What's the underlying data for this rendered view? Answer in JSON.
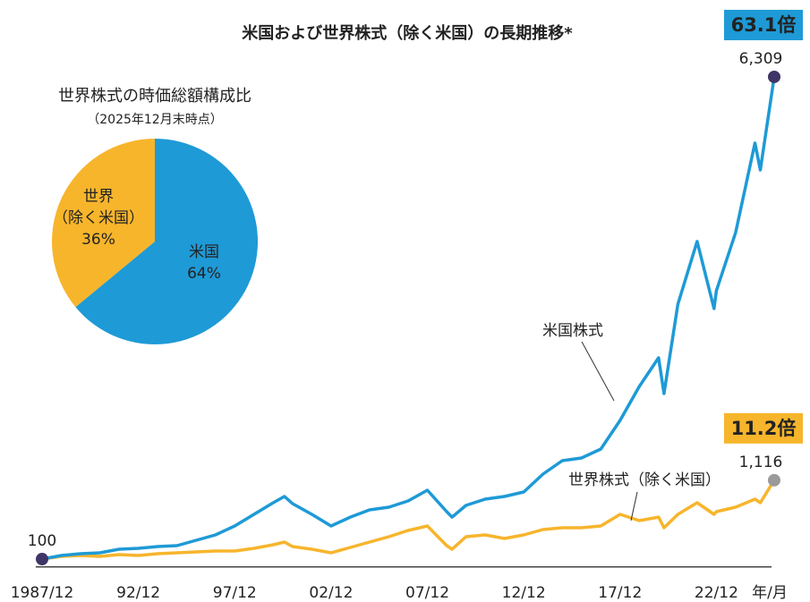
{
  "chart_data": [
    {
      "type": "line",
      "title": "米国および世界株式（除く米国）の長期推移*",
      "xlabel": "年/月",
      "x": [
        1987.92,
        1988.92,
        1989.92,
        1990.92,
        1991.92,
        1992.92,
        1993.92,
        1994.92,
        1995.92,
        1996.92,
        1997.92,
        1998.92,
        1999.92,
        2000.5,
        2000.92,
        2001.92,
        2002.92,
        2003.92,
        2004.92,
        2005.92,
        2006.92,
        2007.92,
        2008.92,
        2009.2,
        2009.92,
        2010.92,
        2011.92,
        2012.92,
        2013.92,
        2014.92,
        2015.92,
        2016.92,
        2017.92,
        2018.92,
        2019.92,
        2020.2,
        2020.92,
        2021.92,
        2022.8,
        2022.92,
        2023.92,
        2024.92,
        2025.2,
        2025.92
      ],
      "xlim": [
        1987.92,
        2025.92
      ],
      "xticks": [
        {
          "value": 1987.92,
          "label": "1987/12"
        },
        {
          "value": 1992.92,
          "label": "92/12"
        },
        {
          "value": 1997.92,
          "label": "97/12"
        },
        {
          "value": 2002.92,
          "label": "02/12"
        },
        {
          "value": 2007.92,
          "label": "07/12"
        },
        {
          "value": 2012.92,
          "label": "12/12"
        },
        {
          "value": 2017.92,
          "label": "17/12"
        },
        {
          "value": 2022.92,
          "label": "22/12"
        }
      ],
      "ylim": [
        0,
        6500
      ],
      "series": [
        {
          "name": "米国株式",
          "color": "#1e9ad6",
          "marker_color": "#3f3566",
          "multiple": "63.1倍",
          "values": [
            100,
            146,
            169,
            181,
            227,
            238,
            261,
            273,
            342,
            411,
            526,
            676,
            826,
            906,
            814,
            676,
            526,
            641,
            734,
            768,
            849,
            987,
            711,
            641,
            791,
            872,
            906,
            964,
            1194,
            1367,
            1402,
            1517,
            1886,
            2323,
            2692,
            2231,
            3383,
            4190,
            3326,
            3556,
            4305,
            5457,
            5111,
            6309
          ],
          "value_labels": [
            "100",
            null,
            null,
            null,
            null,
            null,
            null,
            null,
            null,
            null,
            null,
            null,
            null,
            null,
            null,
            null,
            null,
            null,
            null,
            null,
            null,
            null,
            null,
            null,
            null,
            null,
            null,
            null,
            null,
            null,
            null,
            null,
            null,
            null,
            null,
            null,
            null,
            null,
            null,
            null,
            null,
            null,
            null,
            "6,309"
          ]
        },
        {
          "name": "世界株式（除く米国）",
          "color": "#f7b52c",
          "marker_color": "#9a9a9a",
          "multiple": "11.2倍",
          "values": [
            100,
            135,
            146,
            135,
            158,
            146,
            169,
            181,
            192,
            204,
            204,
            238,
            284,
            319,
            261,
            227,
            181,
            250,
            319,
            388,
            469,
            526,
            273,
            227,
            388,
            411,
            365,
            411,
            480,
            503,
            503,
            526,
            676,
            595,
            641,
            503,
            676,
            826,
            676,
            711,
            768,
            872,
            826,
            1116
          ],
          "value_labels": [
            null,
            null,
            null,
            null,
            null,
            null,
            null,
            null,
            null,
            null,
            null,
            null,
            null,
            null,
            null,
            null,
            null,
            null,
            null,
            null,
            null,
            null,
            null,
            null,
            null,
            null,
            null,
            null,
            null,
            null,
            null,
            null,
            null,
            null,
            null,
            null,
            null,
            null,
            null,
            null,
            null,
            null,
            null,
            "1,116"
          ]
        }
      ]
    },
    {
      "type": "pie",
      "title": "世界株式の時価総額構成比",
      "subtitle": "（2025年12月末時点）",
      "labels": [
        [
          "米国"
        ],
        [
          "世界",
          "（除く米国）"
        ]
      ],
      "values": [
        64,
        36
      ],
      "value_labels": [
        "64%",
        "36%"
      ],
      "colors": [
        "#1e9ad6",
        "#f7b52c"
      ]
    }
  ]
}
